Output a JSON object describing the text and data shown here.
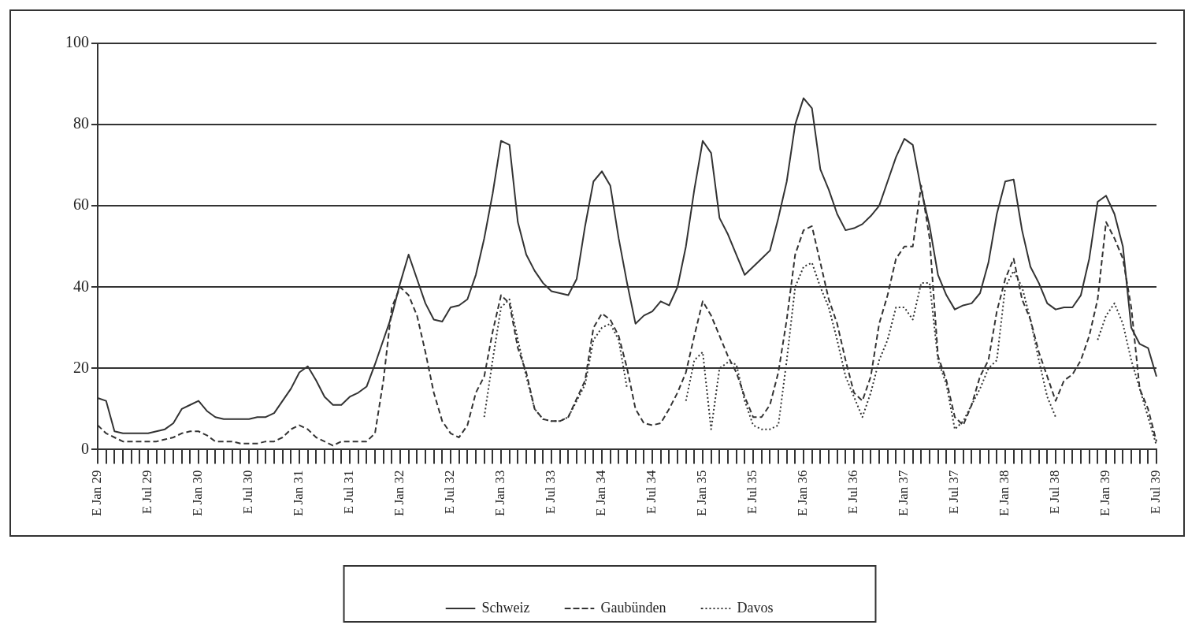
{
  "chart_data": {
    "type": "line",
    "categories": [
      "E Jan 29",
      null,
      null,
      null,
      null,
      null,
      "E Jul 29",
      null,
      null,
      null,
      null,
      null,
      "E Jan 30",
      null,
      null,
      null,
      null,
      null,
      "E Jul 30",
      null,
      null,
      null,
      null,
      null,
      "E Jan 31",
      null,
      null,
      null,
      null,
      null,
      "E Jul 31",
      null,
      null,
      null,
      null,
      null,
      "E Jan 32",
      null,
      null,
      null,
      null,
      null,
      "E Jul 32",
      null,
      null,
      null,
      null,
      null,
      "E Jan 33",
      null,
      null,
      null,
      null,
      null,
      "E Jul 33",
      null,
      null,
      null,
      null,
      null,
      "E Jan 34",
      null,
      null,
      null,
      null,
      null,
      "E Jul 34",
      null,
      null,
      null,
      null,
      null,
      "E Jan 35",
      null,
      null,
      null,
      null,
      null,
      "E Jul 35",
      null,
      null,
      null,
      null,
      null,
      "E Jan 36",
      null,
      null,
      null,
      null,
      null,
      "E Jul 36",
      null,
      null,
      null,
      null,
      null,
      "E Jan 37",
      null,
      null,
      null,
      null,
      null,
      "E Jul 37",
      null,
      null,
      null,
      null,
      null,
      "E Jan 38",
      null,
      null,
      null,
      null,
      null,
      "E Jul 38",
      null,
      null,
      null,
      null,
      null,
      "E Jan 39",
      null,
      null,
      null,
      null,
      null,
      "E Jul 39"
    ],
    "series": [
      {
        "name": "Schweiz",
        "color": "#333333",
        "line_style": "solid",
        "values": [
          12.7,
          12,
          4.5,
          4,
          4,
          4,
          4,
          4.5,
          5,
          6.5,
          10,
          11,
          12,
          9.5,
          8,
          7.5,
          7.5,
          7.5,
          7.5,
          8,
          8,
          9,
          12,
          15,
          19,
          20.5,
          17,
          13,
          11,
          11,
          13,
          14,
          15.5,
          21,
          27,
          33,
          41,
          48,
          42,
          36,
          32,
          31.5,
          35,
          35.5,
          37,
          43,
          52,
          63,
          76,
          75,
          56,
          48,
          44,
          41,
          39,
          38.5,
          38,
          42,
          55,
          66,
          68.5,
          65,
          52,
          41,
          31,
          33,
          34,
          36.5,
          35.5,
          40,
          50,
          64,
          76,
          73,
          57,
          53,
          48,
          43,
          45,
          47,
          49,
          57,
          66,
          80,
          86.5,
          84,
          69,
          64,
          58,
          54,
          54.5,
          55.5,
          57.5,
          60,
          66,
          72,
          76.5,
          75,
          64,
          55,
          43,
          38,
          34.5,
          35.5,
          36,
          38.5,
          46,
          58,
          66,
          66.5,
          54,
          45,
          41,
          36,
          34.5,
          35,
          35,
          38,
          47,
          61,
          62.5,
          58,
          50,
          30,
          26,
          25,
          18
        ]
      },
      {
        "name": "Gaubünden",
        "color": "#333333",
        "line_style": "dashed",
        "values": [
          6,
          4,
          3,
          2,
          2,
          2,
          2,
          2,
          2.5,
          3,
          4,
          4.5,
          4.5,
          3.5,
          2,
          2,
          2,
          1.5,
          1.5,
          1.5,
          2,
          2,
          3,
          5,
          6,
          5,
          3,
          2,
          1,
          2,
          2,
          2,
          2,
          4,
          17,
          35,
          40,
          38,
          33,
          24,
          14,
          7,
          4,
          3,
          6,
          14,
          18,
          29,
          38,
          36,
          25,
          19,
          10,
          7.5,
          7,
          7,
          8,
          12.5,
          17,
          30,
          33.5,
          32,
          28,
          20,
          10,
          6.5,
          6,
          6.5,
          10,
          14,
          19,
          28,
          36.5,
          33,
          28,
          23,
          19,
          13,
          8,
          8,
          11,
          19,
          32,
          48,
          54,
          55,
          46,
          37,
          31,
          22,
          14,
          12,
          18,
          31,
          38,
          47,
          50,
          50,
          65,
          52,
          23,
          17,
          8,
          6,
          11,
          18,
          22,
          34,
          42,
          47,
          37,
          32,
          24,
          18,
          12,
          17,
          18.5,
          22,
          28,
          37,
          56,
          52,
          47,
          35,
          15,
          10,
          2
        ]
      },
      {
        "name": "Davos",
        "color": "#333333",
        "line_style": "dotted",
        "values": [
          null,
          null,
          null,
          null,
          null,
          null,
          null,
          null,
          null,
          null,
          null,
          null,
          null,
          null,
          null,
          null,
          null,
          null,
          null,
          null,
          null,
          null,
          null,
          null,
          null,
          null,
          null,
          null,
          null,
          null,
          null,
          null,
          null,
          null,
          null,
          null,
          null,
          null,
          null,
          null,
          null,
          null,
          null,
          null,
          null,
          null,
          8,
          22,
          35,
          37,
          27,
          18,
          10,
          7.5,
          7,
          7,
          8,
          12,
          16,
          27,
          30,
          31,
          27,
          15,
          null,
          null,
          null,
          null,
          null,
          null,
          12,
          22,
          24,
          5,
          20,
          21.5,
          21,
          12,
          6,
          5,
          5,
          6,
          22,
          40,
          45,
          46,
          40,
          35,
          27,
          18,
          13,
          8,
          14,
          22,
          27,
          35,
          35,
          32,
          41,
          41,
          22,
          16,
          5,
          7,
          11,
          15,
          20,
          22,
          40,
          44,
          40,
          32,
          22,
          13,
          8,
          null,
          null,
          null,
          null,
          27,
          33,
          36,
          31,
          22,
          15,
          8,
          1
        ]
      }
    ],
    "ylim": [
      0,
      100
    ],
    "yticks": [
      0,
      20,
      40,
      60,
      80,
      100
    ],
    "grid": "y",
    "legend": "bottom",
    "marker": "none"
  }
}
